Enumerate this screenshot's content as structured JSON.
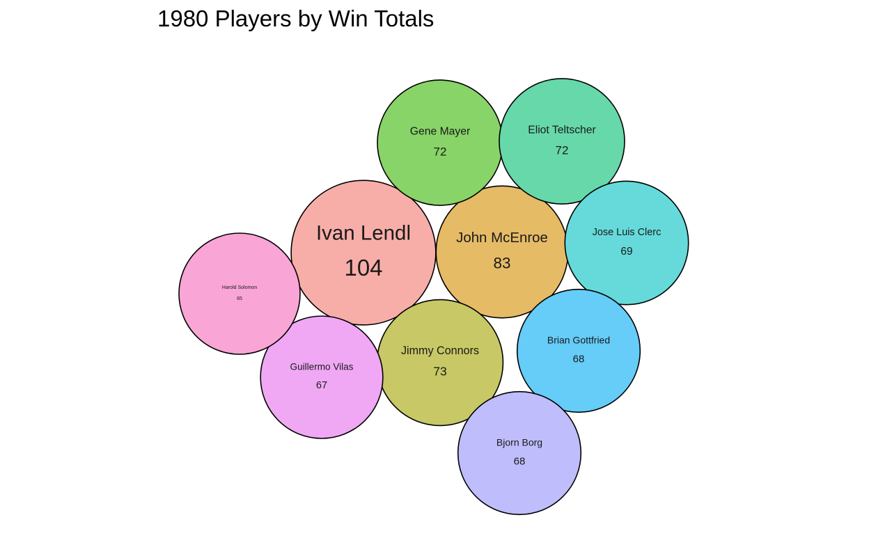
{
  "chart_data": {
    "type": "bubble",
    "title": "1980 Players by Win Totals",
    "series": [
      {
        "name": "Ivan Lendl",
        "value": 104,
        "color": "#F8AEA8"
      },
      {
        "name": "John McEnroe",
        "value": 83,
        "color": "#E6BB66"
      },
      {
        "name": "Jimmy Connors",
        "value": 73,
        "color": "#C8C866"
      },
      {
        "name": "Gene Mayer",
        "value": 72,
        "color": "#88D468"
      },
      {
        "name": "Eliot Teltscher",
        "value": 72,
        "color": "#66D8AA"
      },
      {
        "name": "Jose Luis Clerc",
        "value": 69,
        "color": "#66DADA"
      },
      {
        "name": "Brian Gottfried",
        "value": 68,
        "color": "#66CCF8"
      },
      {
        "name": "Bjorn Borg",
        "value": 68,
        "color": "#BFBDFB"
      },
      {
        "name": "Guillermo Vilas",
        "value": 67,
        "color": "#F0A8F5"
      },
      {
        "name": "Harold Solomon",
        "value": 65,
        "color": "#F9A5D5"
      }
    ]
  }
}
